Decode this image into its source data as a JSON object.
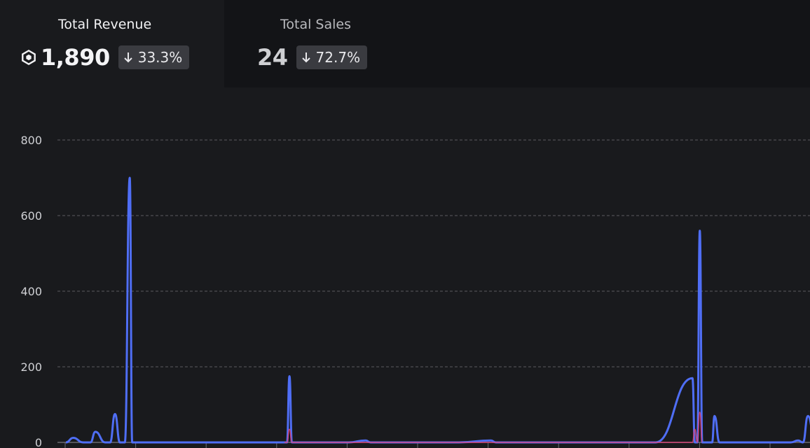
{
  "tabs": {
    "revenue": {
      "title": "Total Revenue",
      "value": "1,890",
      "delta": "33.3%",
      "icon": "robux-icon"
    },
    "sales": {
      "title": "Total Sales",
      "value": "24",
      "delta": "72.7%"
    }
  },
  "colors": {
    "series_primary": "#4f6ef5",
    "series_secondary": "#e0447a",
    "grid": "#5a5b60",
    "active_tab": "#191a1d",
    "inactive_tab": "#131417"
  },
  "chart_data": {
    "type": "line",
    "ylim": [
      0,
      800
    ],
    "yticks": [
      0,
      200,
      400,
      600,
      800
    ],
    "xlim": [
      0,
      30
    ],
    "grid": true,
    "series": [
      {
        "x": [
          0,
          0.3,
          0.7,
          1.0,
          1.2,
          1.6,
          1.8,
          2.0,
          2.2,
          2.4,
          2.6,
          2.7,
          3.0,
          3.5,
          8.0,
          9.0,
          9.1,
          9.2,
          9.3,
          9.4,
          10,
          11.5,
          12.2,
          12.4,
          12.6,
          13,
          16,
          17.3,
          17.5,
          17.7,
          18,
          24,
          25.5,
          25.6,
          25.7,
          25.8,
          25.9,
          26.0,
          26.1,
          26.2,
          26.3,
          26.4,
          26.6,
          27,
          29.5,
          29.8,
          30.0,
          30.2,
          30.5
        ],
        "values": [
          0,
          12,
          0,
          0,
          28,
          0,
          0,
          75,
          0,
          0,
          700,
          0,
          0,
          0,
          0,
          0,
          175,
          0,
          0,
          0,
          0,
          0,
          5,
          0,
          0,
          0,
          0,
          5,
          0,
          0,
          0,
          0,
          170,
          0,
          0,
          560,
          0,
          0,
          0,
          0,
          0,
          70,
          0,
          0,
          0,
          5,
          0,
          70,
          0
        ]
      },
      {
        "x": [
          8.9,
          9.0,
          9.1,
          9.2,
          25.5,
          25.6,
          25.7,
          25.8,
          25.9
        ],
        "values": [
          0,
          0,
          35,
          0,
          0,
          35,
          0,
          80,
          0
        ]
      }
    ]
  }
}
